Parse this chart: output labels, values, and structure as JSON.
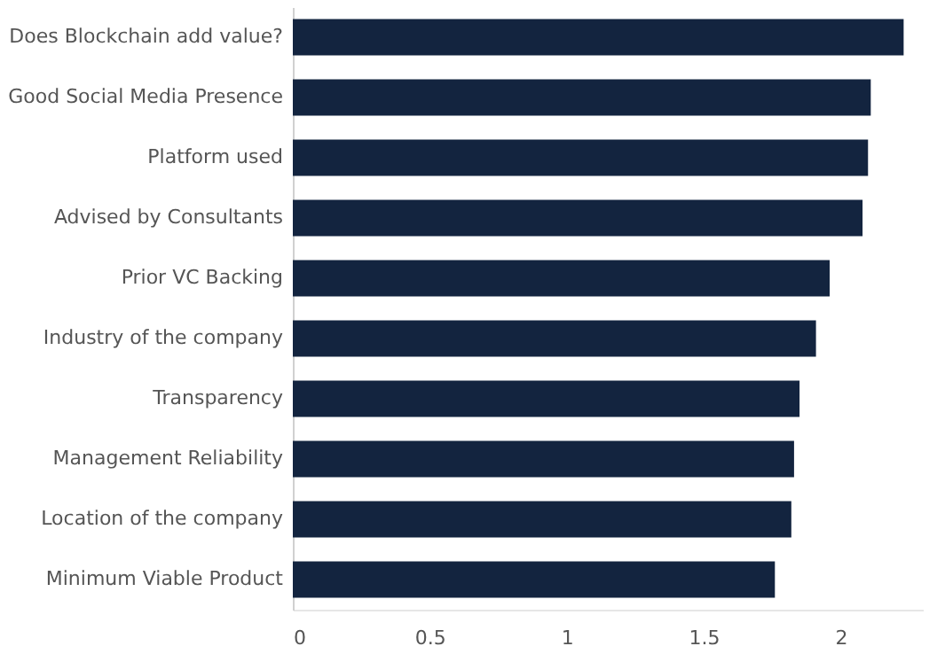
{
  "chart_data": {
    "type": "bar",
    "orientation": "horizontal",
    "categories": [
      "Does Blockchain add value?",
      "Good Social Media Presence",
      "Platform used",
      "Advised by Consultants",
      "Prior VC Backing",
      "Industry of the company",
      "Transparency",
      "Management Reliability",
      "Location of the company",
      "Minimum Viable Product"
    ],
    "values": [
      2.23,
      2.11,
      2.1,
      2.08,
      1.96,
      1.91,
      1.85,
      1.83,
      1.82,
      1.76
    ],
    "color": "#13243f",
    "xlim": [
      0,
      2.3
    ],
    "xticks": [
      0,
      0.5,
      1,
      1.5,
      2
    ],
    "grid": false
  }
}
